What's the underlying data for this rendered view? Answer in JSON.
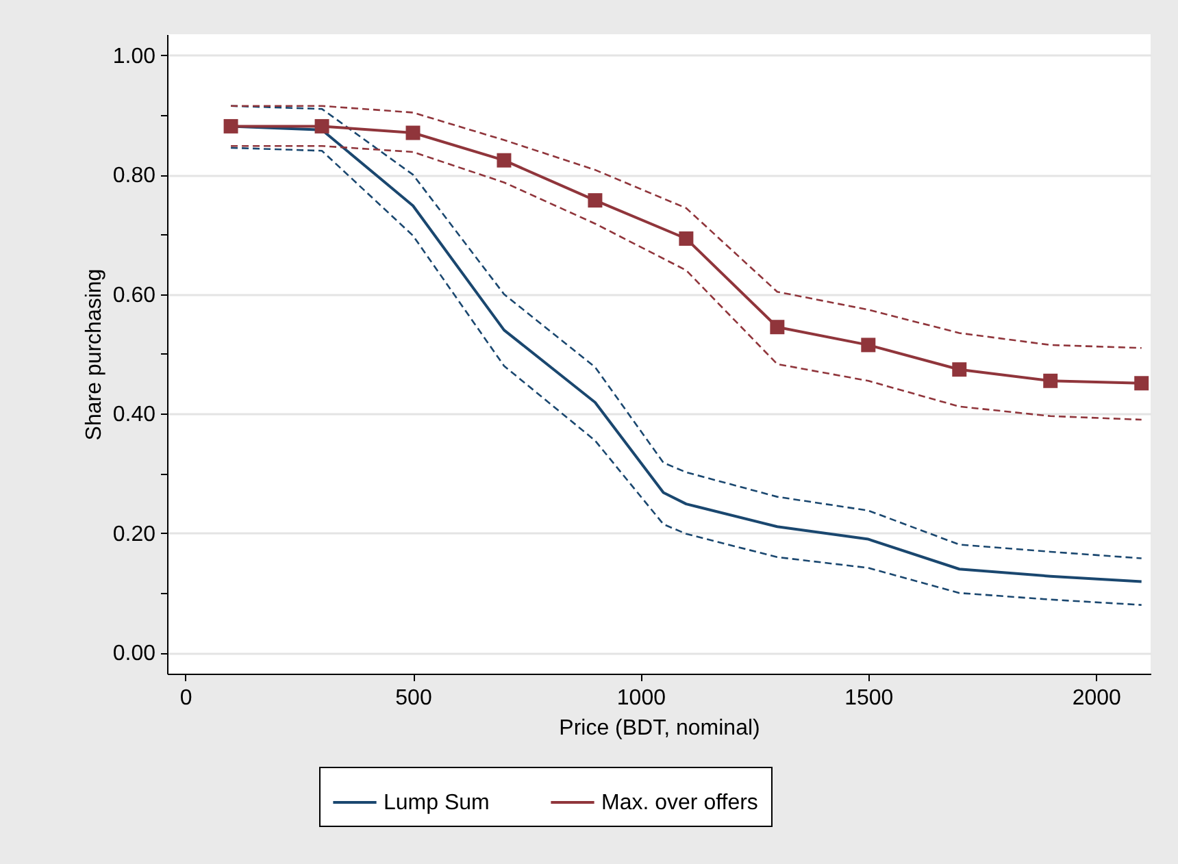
{
  "chart_data": {
    "type": "line",
    "xlabel": "Price (BDT, nominal)",
    "ylabel": "Share purchasing",
    "xlim": [
      -40,
      2120
    ],
    "xticks": [
      0,
      500,
      1000,
      1500,
      2000
    ],
    "ylim": [
      -0.035,
      1.035
    ],
    "yticks": [
      {
        "value": 0,
        "label": "0.00"
      },
      {
        "value": 0.1,
        "label": null
      },
      {
        "value": 0.2,
        "label": "0.20"
      },
      {
        "value": 0.3,
        "label": null
      },
      {
        "value": 0.4,
        "label": "0.40"
      },
      {
        "value": 0.5,
        "label": null
      },
      {
        "value": 0.6,
        "label": "0.60"
      },
      {
        "value": 0.7,
        "label": null
      },
      {
        "value": 0.8,
        "label": "0.80"
      },
      {
        "value": 0.9,
        "label": null
      },
      {
        "value": 1,
        "label": "1.00"
      }
    ],
    "grid": "y",
    "legend": "bottom",
    "series": [
      {
        "name": "Lump Sum",
        "color": "#1a476f",
        "marker": "none",
        "line_style": "solid",
        "x": [
          100,
          300,
          500,
          700,
          900,
          1050,
          1100,
          1300,
          1500,
          1700,
          1900,
          2100
        ],
        "values": [
          0.881,
          0.875,
          0.748,
          0.54,
          0.419,
          0.268,
          0.249,
          0.211,
          0.19,
          0.14,
          0.128,
          0.119
        ]
      },
      {
        "color": "#1a476f",
        "marker": "none",
        "line_style": "dashed",
        "x": [
          100,
          300,
          500,
          700,
          900,
          1050,
          1100,
          1300,
          1500,
          1700,
          1900,
          2100
        ],
        "values": [
          0.845,
          0.84,
          0.698,
          0.48,
          0.355,
          0.215,
          0.199,
          0.16,
          0.142,
          0.1,
          0.089,
          0.08
        ]
      },
      {
        "color": "#1a476f",
        "marker": "none",
        "line_style": "dashed",
        "x": [
          100,
          300,
          500,
          700,
          900,
          1050,
          1100,
          1300,
          1500,
          1700,
          1900,
          2100
        ],
        "values": [
          0.915,
          0.91,
          0.8,
          0.6,
          0.478,
          0.318,
          0.302,
          0.261,
          0.238,
          0.181,
          0.169,
          0.158
        ]
      },
      {
        "name": "Max. over offers",
        "color": "#90353b",
        "marker": "square",
        "line_style": "solid",
        "x": [
          100,
          300,
          500,
          700,
          900,
          1100,
          1300,
          1500,
          1700,
          1900,
          2100
        ],
        "values": [
          0.881,
          0.881,
          0.87,
          0.824,
          0.757,
          0.693,
          0.545,
          0.515,
          0.474,
          0.455,
          0.451
        ]
      },
      {
        "color": "#90353b",
        "marker": "none",
        "line_style": "dashed",
        "x": [
          100,
          300,
          500,
          700,
          900,
          1100,
          1300,
          1500,
          1700,
          1900,
          2100
        ],
        "values": [
          0.848,
          0.848,
          0.838,
          0.787,
          0.718,
          0.64,
          0.483,
          0.455,
          0.412,
          0.396,
          0.39
        ]
      },
      {
        "color": "#90353b",
        "marker": "none",
        "line_style": "dashed",
        "x": [
          100,
          300,
          500,
          700,
          900,
          1100,
          1300,
          1500,
          1700,
          1900,
          2100
        ],
        "values": [
          0.915,
          0.915,
          0.904,
          0.858,
          0.808,
          0.744,
          0.604,
          0.574,
          0.535,
          0.515,
          0.51
        ]
      }
    ]
  }
}
